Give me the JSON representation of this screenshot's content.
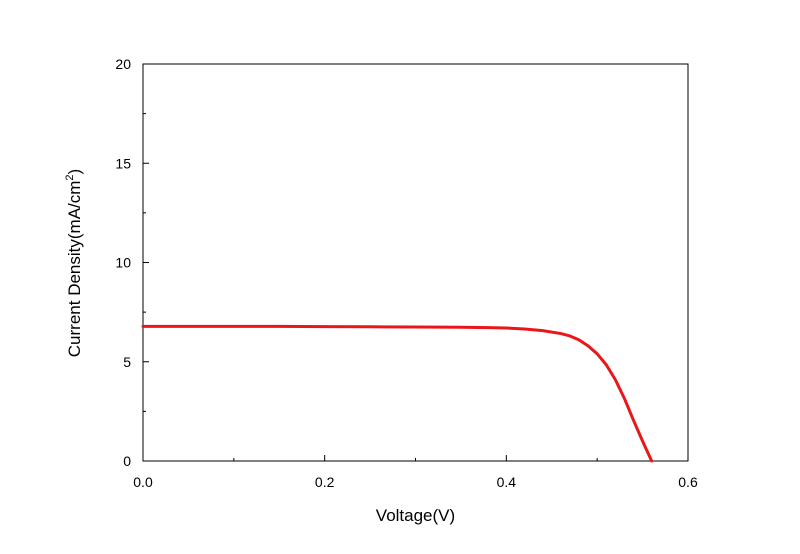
{
  "chart_data": {
    "type": "line",
    "xlabel": "Voltage(V)",
    "ylabel_main": "Current Density(mA/cm",
    "ylabel_sup": "2",
    "ylabel_end": ")",
    "xlim": [
      0,
      0.6
    ],
    "ylim": [
      0,
      20
    ],
    "xticks": [
      {
        "value": 0,
        "label": "0.0"
      },
      {
        "value": 0.2,
        "label": "0.2"
      },
      {
        "value": 0.4,
        "label": "0.4"
      },
      {
        "value": 0.6,
        "label": "0.6"
      }
    ],
    "xminor": [
      0.1,
      0.3,
      0.5
    ],
    "yticks": [
      {
        "value": 0,
        "label": "0"
      },
      {
        "value": 5,
        "label": "5"
      },
      {
        "value": 10,
        "label": "10"
      },
      {
        "value": 15,
        "label": "15"
      },
      {
        "value": 20,
        "label": "20"
      }
    ],
    "yminor": [
      2.5,
      7.5,
      12.5,
      17.5
    ],
    "grid": false,
    "series": [
      {
        "color": "#e8171a",
        "x": [
          0.0,
          0.05,
          0.1,
          0.15,
          0.2,
          0.25,
          0.3,
          0.35,
          0.38,
          0.4,
          0.42,
          0.44,
          0.46,
          0.47,
          0.48,
          0.49,
          0.5,
          0.51,
          0.52,
          0.53,
          0.54,
          0.55,
          0.56
        ],
        "y": [
          6.78,
          6.78,
          6.78,
          6.78,
          6.77,
          6.76,
          6.75,
          6.74,
          6.72,
          6.7,
          6.65,
          6.57,
          6.42,
          6.3,
          6.1,
          5.8,
          5.4,
          4.85,
          4.1,
          3.15,
          2.05,
          1.0,
          0.0
        ]
      }
    ]
  }
}
